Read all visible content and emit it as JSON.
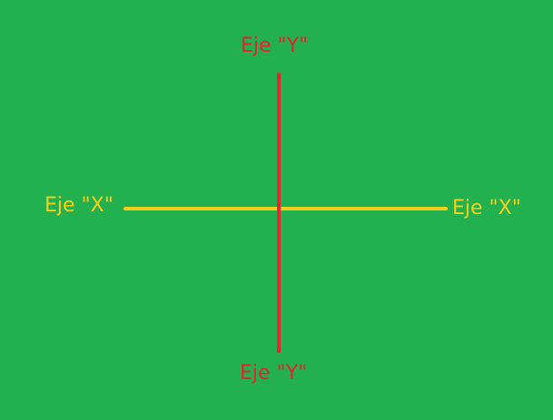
{
  "labels": {
    "y_top": "Eje \"Y\"",
    "y_bottom": "Eje \"Y\"",
    "x_left": "Eje \"X\"",
    "x_right": "Eje \"X\""
  },
  "colors": {
    "background": "#23b04f",
    "y_axis": "#e2262c",
    "x_axis": "#f4cf1a"
  }
}
